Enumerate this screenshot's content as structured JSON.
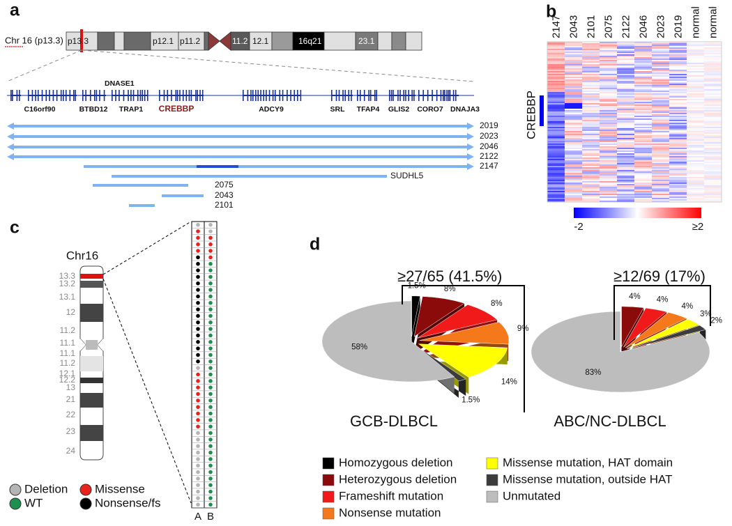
{
  "panel_labels": [
    "a",
    "b",
    "c",
    "d"
  ],
  "panel_a": {
    "chromosome_label": "Chr 16 (p13.3)",
    "bands": [
      "p13.3",
      "p12.1",
      "p11.2",
      "11.2",
      "12.1",
      "16q21",
      "23.1"
    ],
    "gene_above": "DNASE1",
    "genes": [
      "C16orf90",
      "BTBD12",
      "TRAP1",
      "CREBBP",
      "ADCY9",
      "SRL",
      "TFAP4",
      "GLIS2",
      "CORO7",
      "DNAJA3"
    ],
    "samples": [
      "2019",
      "2023",
      "2046",
      "2122",
      "2147",
      "SUDHL5",
      "2075",
      "2043",
      "2101"
    ]
  },
  "panel_b": {
    "columns": [
      "2147",
      "2043",
      "2101",
      "2075",
      "2122",
      "2046",
      "2023",
      "2019",
      "normal",
      "normal"
    ],
    "gene": "CREBBP",
    "colorbar_labels": [
      "-2",
      "≥2"
    ]
  },
  "panel_c": {
    "title": "Chr16",
    "bands": [
      "13.3",
      "13.2",
      "13.1",
      "12",
      "11.2",
      "11.1",
      "11.1",
      "11.2",
      "12.1",
      "12.2",
      "13",
      "21",
      "22",
      "23",
      "24"
    ],
    "columns": [
      "A",
      "B"
    ],
    "legend": [
      {
        "label": "Deletion",
        "color": "#b5b5b5"
      },
      {
        "label": "Missense",
        "color": "#e8221c"
      },
      {
        "label": "WT",
        "color": "#1f8f4e"
      },
      {
        "label": "Nonsense/fs",
        "color": "#000000"
      }
    ],
    "dots": {
      "A": [
        "Deletion",
        "Missense",
        "Missense",
        "Missense",
        "Missense",
        "Nonsense/fs",
        "Nonsense/fs",
        "Nonsense/fs",
        "Nonsense/fs",
        "Nonsense/fs",
        "Nonsense/fs",
        "Nonsense/fs",
        "Nonsense/fs",
        "Nonsense/fs",
        "Nonsense/fs",
        "Nonsense/fs",
        "Nonsense/fs",
        "Nonsense/fs",
        "Nonsense/fs",
        "Nonsense/fs",
        "Nonsense/fs",
        "Nonsense/fs",
        "Deletion",
        "Missense",
        "Missense",
        "Missense",
        "Missense",
        "Missense",
        "Missense",
        "Missense",
        "Missense",
        "Missense",
        "Deletion",
        "Deletion",
        "Deletion",
        "Deletion",
        "Deletion",
        "Deletion",
        "Deletion",
        "Deletion",
        "Deletion",
        "Deletion",
        "Deletion",
        "Deletion"
      ],
      "B": [
        "Deletion",
        "Deletion",
        "Missense",
        "Missense",
        "Missense",
        "Missense",
        "WT",
        "WT",
        "WT",
        "WT",
        "WT",
        "WT",
        "WT",
        "WT",
        "WT",
        "WT",
        "WT",
        "WT",
        "WT",
        "WT",
        "WT",
        "WT",
        "WT",
        "WT",
        "WT",
        "WT",
        "WT",
        "WT",
        "WT",
        "WT",
        "WT",
        "WT",
        "WT",
        "WT",
        "WT",
        "WT",
        "WT",
        "WT",
        "WT",
        "WT",
        "WT",
        "WT",
        "WT",
        "WT"
      ]
    }
  },
  "chart_data": [
    {
      "type": "pie",
      "title": "GCB-DLBCL",
      "annotation": "≥27/65 (41.5%)",
      "categories": [
        "Homozygous deletion",
        "Heterozygous deletion",
        "Frameshift mutation",
        "Nonsense mutation",
        "Missense mutation, HAT domain",
        "Missense mutation, outside HAT",
        "Unmutated"
      ],
      "colors": [
        "#000000",
        "#8b0b0b",
        "#f01a1a",
        "#f5781a",
        "#ffff00",
        "#3c3c3c",
        "#bdbdbd"
      ],
      "values": [
        1.5,
        8,
        8,
        9,
        14,
        1.5,
        58
      ],
      "value_labels": [
        "1.5%",
        "8%",
        "8%",
        "9%",
        "14%",
        "1.5%",
        "58%"
      ]
    },
    {
      "type": "pie",
      "title": "ABC/NC-DLBCL",
      "annotation": "≥12/69 (17%)",
      "categories": [
        "Homozygous deletion",
        "Heterozygous deletion",
        "Frameshift mutation",
        "Nonsense mutation",
        "Missense mutation, HAT domain",
        "Missense mutation, outside HAT",
        "Unmutated"
      ],
      "colors": [
        "#000000",
        "#8b0b0b",
        "#f01a1a",
        "#f5781a",
        "#ffff00",
        "#3c3c3c",
        "#bdbdbd"
      ],
      "values": [
        null,
        4,
        4,
        4,
        3,
        2,
        83
      ],
      "value_labels": [
        null,
        "4%",
        "4%",
        "4%",
        "3%",
        "2%",
        "83%"
      ]
    }
  ]
}
